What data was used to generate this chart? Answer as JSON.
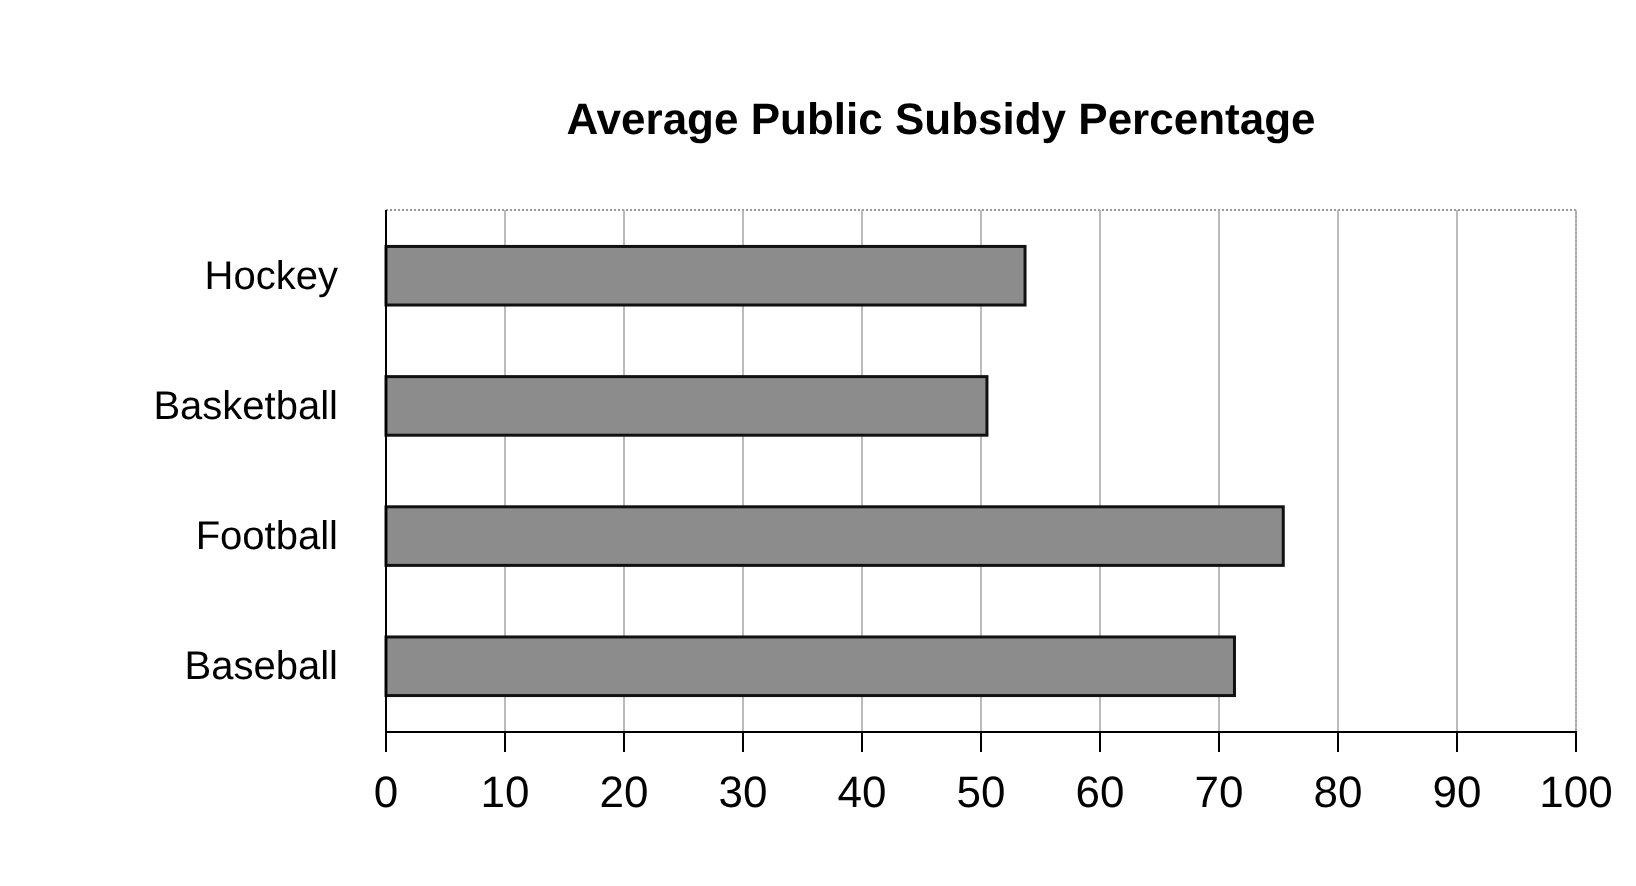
{
  "chart_data": {
    "type": "bar",
    "orientation": "horizontal",
    "title": "Average Public Subsidy Percentage",
    "categories": [
      "Hockey",
      "Basketball",
      "Football",
      "Baseball"
    ],
    "values": [
      53.7,
      50.5,
      75.4,
      71.3
    ],
    "color": "#8c8c8c",
    "xlim": [
      0,
      100
    ],
    "xticks": [
      0,
      10,
      20,
      30,
      40,
      50,
      60,
      70,
      80,
      90,
      100
    ],
    "grid": "x"
  }
}
